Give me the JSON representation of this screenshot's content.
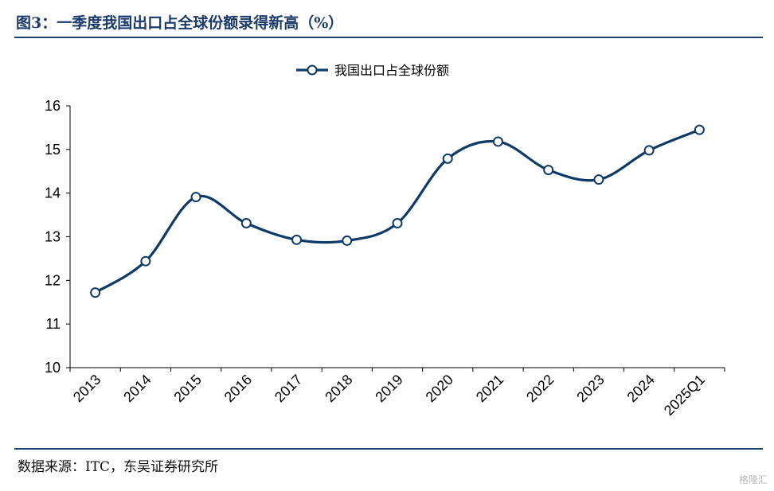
{
  "figure": {
    "title": "图3：一季度我国出口占全球份额录得新高（%）",
    "source": "数据来源：ITC，东吴证券研究所",
    "watermark": "格隆汇"
  },
  "colors": {
    "series": "#0d3a66",
    "rule": "#1f3f6e",
    "title": "#1a3a6b"
  },
  "chart_data": {
    "type": "line",
    "smooth": true,
    "categories": [
      "2013",
      "2014",
      "2015",
      "2016",
      "2017",
      "2018",
      "2019",
      "2020",
      "2021",
      "2022",
      "2023",
      "2024",
      "2025Q1"
    ],
    "series": [
      {
        "name": "我国出口占全球份额",
        "values": [
          11.72,
          12.44,
          13.91,
          13.31,
          12.93,
          12.91,
          13.31,
          14.79,
          15.18,
          14.53,
          14.31,
          14.98,
          15.45
        ]
      }
    ],
    "ylim": [
      10,
      16
    ],
    "yticks": [
      10,
      11,
      12,
      13,
      14,
      15,
      16
    ],
    "legend_position": "top-center",
    "grid": false,
    "marker": "hollow-circle"
  }
}
